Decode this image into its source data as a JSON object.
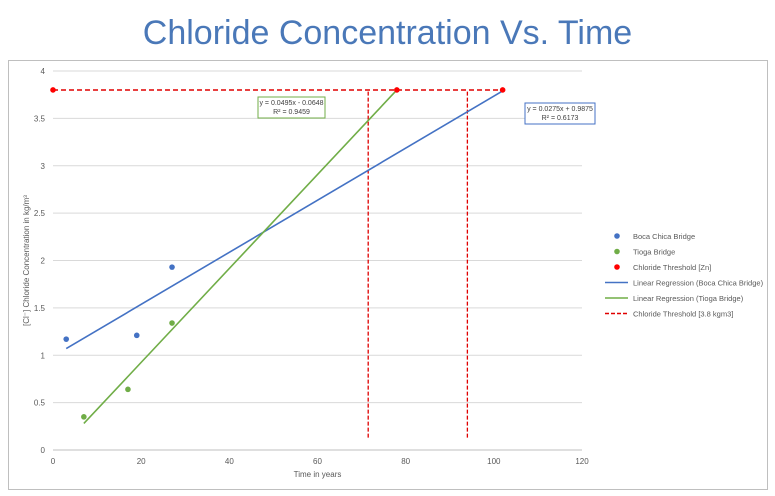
{
  "page_title": "Chloride Concentration Vs. Time",
  "colors": {
    "title": "#4a78b8",
    "boca": "#4472c4",
    "tioga": "#70ad47",
    "threshold": "#ff0000",
    "threshold_line": "#e00000",
    "grid": "#d9d9d9"
  },
  "chart_data": {
    "type": "scatter",
    "title": "Chloride Concentration Vs. Time",
    "xlabel": "Time in years",
    "ylabel": "[Cl⁻] Chloride Concentration in kg/m³",
    "xlim": [
      0,
      120
    ],
    "ylim": [
      0,
      4
    ],
    "xticks": [
      0,
      20,
      40,
      60,
      80,
      100,
      120
    ],
    "yticks": [
      0,
      0.5,
      1,
      1.5,
      2,
      2.5,
      3,
      3.5,
      4
    ],
    "xtick_labels": [
      "0",
      "20",
      "40",
      "60",
      "80",
      "100",
      "120"
    ],
    "ytick_labels": [
      "0",
      "0.5",
      "1",
      "1.5",
      "2",
      "2.5",
      "3",
      "3.5",
      "4"
    ],
    "grid": true,
    "legend_position": "right",
    "series": [
      {
        "name": "Boca Chica Bridge",
        "kind": "points",
        "color": "#4472c4",
        "points": [
          [
            3,
            1.17
          ],
          [
            19,
            1.21
          ],
          [
            27,
            1.93
          ]
        ]
      },
      {
        "name": "Tioga Bridge",
        "kind": "points",
        "color": "#70ad47",
        "points": [
          [
            7,
            0.35
          ],
          [
            17,
            0.64
          ],
          [
            27,
            1.34
          ]
        ]
      },
      {
        "name": "Chloride Threshold [Zn]",
        "kind": "points",
        "color": "#ff0000",
        "points": [
          [
            0,
            3.8
          ],
          [
            78,
            3.8
          ],
          [
            102,
            3.8
          ]
        ]
      },
      {
        "name": "Linear Regression (Boca Chica Bridge)",
        "kind": "line",
        "color": "#4472c4",
        "points": [
          [
            3,
            1.07
          ],
          [
            102,
            3.79
          ]
        ]
      },
      {
        "name": "Linear Regression (Tioga Bridge)",
        "kind": "line",
        "color": "#70ad47",
        "points": [
          [
            7,
            0.28
          ],
          [
            78,
            3.8
          ]
        ]
      },
      {
        "name": "Chloride Threshold [3.8 kgm3]",
        "kind": "dashed",
        "color": "#e00000",
        "points": [
          [
            0,
            3.8
          ],
          [
            102,
            3.8
          ]
        ]
      }
    ],
    "vertical_markers": [
      {
        "color": "#e00000",
        "points": [
          [
            71.5,
            0.13
          ],
          [
            71.5,
            3.8
          ]
        ]
      },
      {
        "color": "#e00000",
        "points": [
          [
            94,
            0.13
          ],
          [
            94,
            3.8
          ]
        ]
      }
    ],
    "annotations": [
      {
        "lines": [
          "y = 0.0495x - 0.0648",
          "R² = 0.9459"
        ],
        "color": "#70ad47"
      },
      {
        "lines": [
          "y = 0.0275x + 0.9875",
          "R² = 0.6173"
        ],
        "color": "#4472c4"
      }
    ]
  }
}
